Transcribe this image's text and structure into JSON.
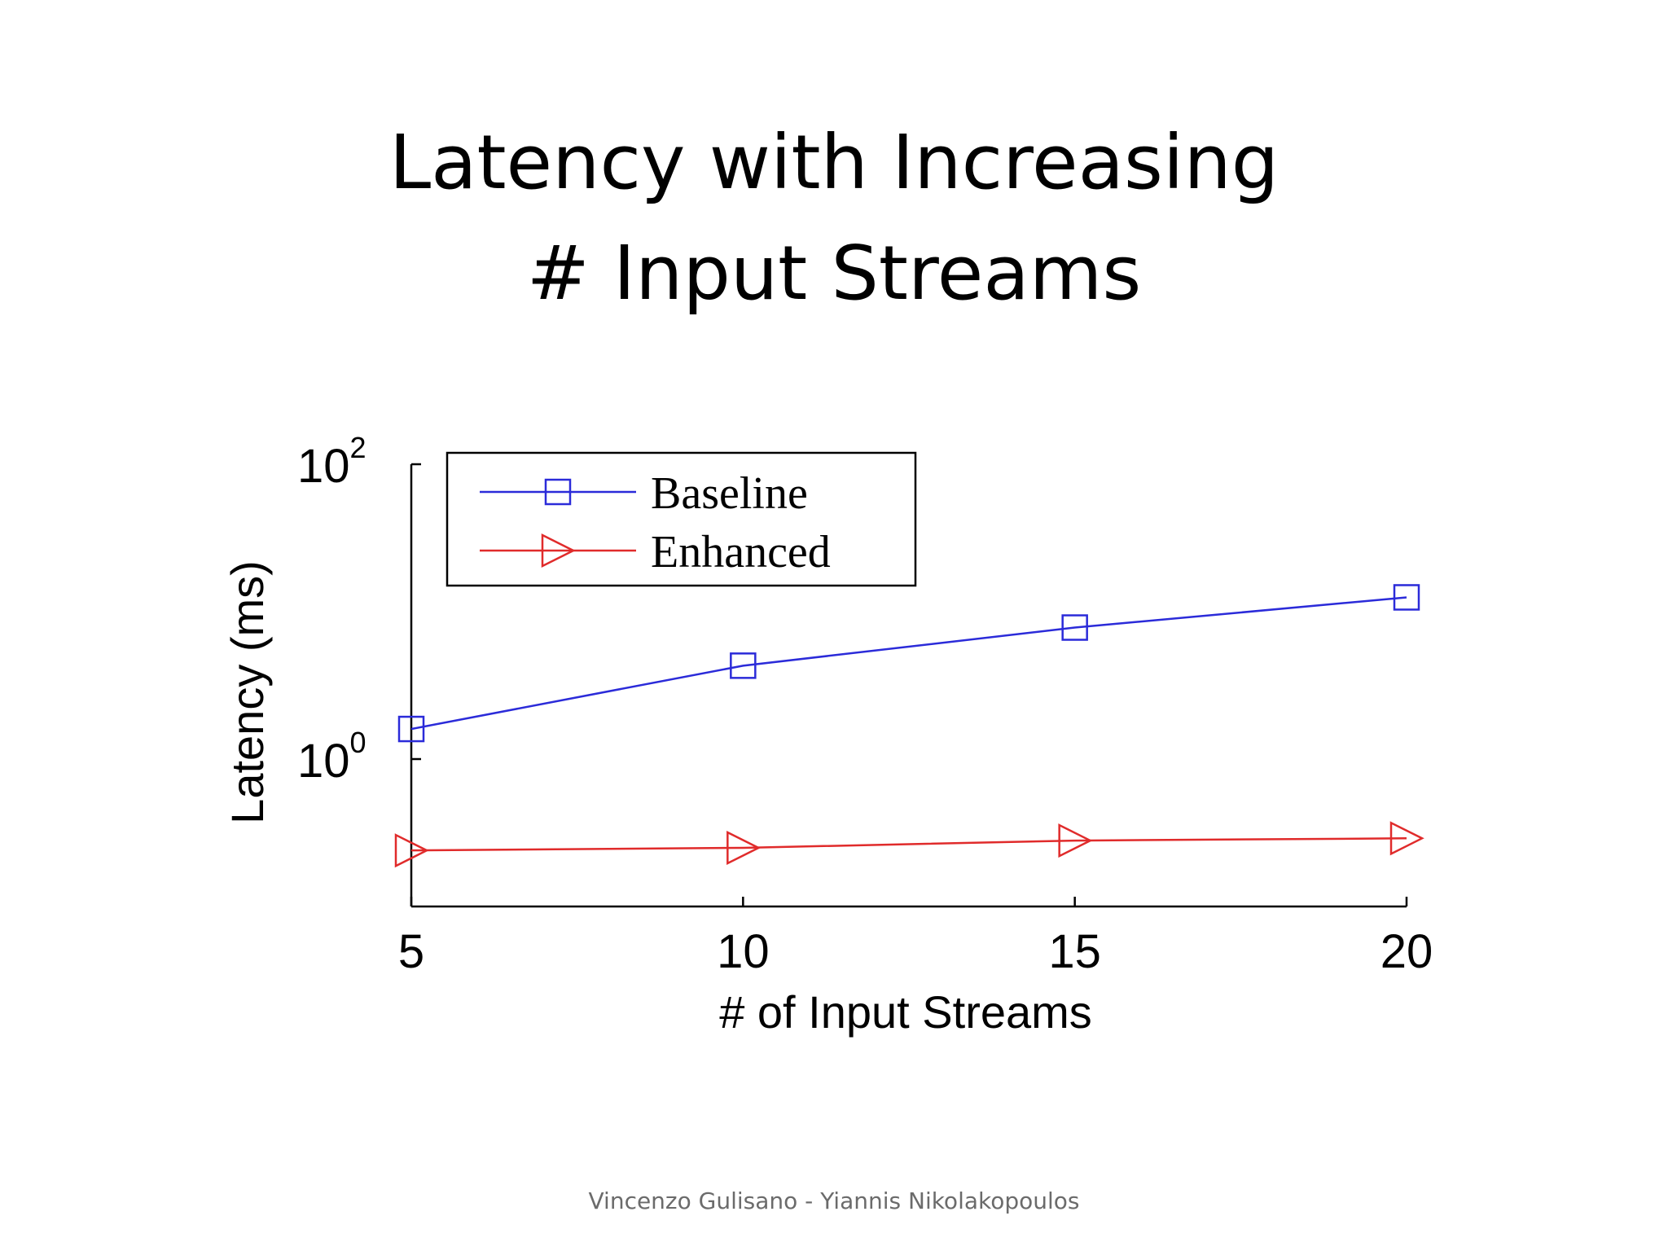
{
  "slide": {
    "title_line1": "Latency with Increasing",
    "title_line2": "# Input Streams",
    "footer": "Vincenzo Gulisano - Yiannis Nikolakopoulos"
  },
  "chart_data": {
    "type": "line",
    "x": [
      5,
      10,
      15,
      20
    ],
    "xticks": [
      "5",
      "10",
      "15",
      "20"
    ],
    "xlabel": "# of Input Streams",
    "ylabel": "Latency (ms)",
    "yscale": "log",
    "ylim": [
      0.1,
      100
    ],
    "yticks": [
      {
        "base": "10",
        "exp": "0",
        "value": 1
      },
      {
        "base": "10",
        "exp": "2",
        "value": 100
      }
    ],
    "legend_position": "top-left",
    "grid": false,
    "series": [
      {
        "name": "Baseline",
        "marker": "square",
        "color": "#2b2bd9",
        "values": [
          1.6,
          4.3,
          7.8,
          12.5
        ]
      },
      {
        "name": "Enhanced",
        "marker": "triangle-right",
        "color": "#e02b2b",
        "values": [
          0.24,
          0.25,
          0.28,
          0.29
        ]
      }
    ]
  }
}
